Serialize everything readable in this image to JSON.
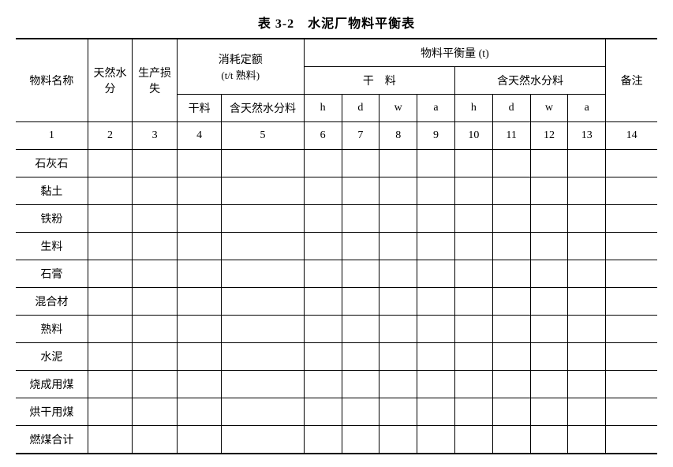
{
  "title": "表 3-2　水泥厂物料平衡表",
  "header": {
    "col_name": "物料名称",
    "col_moisture": "天然水分",
    "col_loss": "生产损失",
    "group_consumption": "消耗定额",
    "group_consumption_sub": "(t/t 熟料)",
    "consumption_dry": "干料",
    "consumption_wet": "含天然水分料",
    "group_balance": "物料平衡量 (t)",
    "balance_dry": "干　料",
    "balance_wet": "含天然水分料",
    "col_remark": "备注",
    "h": "h",
    "d": "d",
    "w": "w",
    "a": "a"
  },
  "index_row": [
    "1",
    "2",
    "3",
    "4",
    "5",
    "6",
    "7",
    "8",
    "9",
    "10",
    "11",
    "12",
    "13",
    "14"
  ],
  "rows": [
    {
      "name": "石灰石"
    },
    {
      "name": "黏土"
    },
    {
      "name": "铁粉"
    },
    {
      "name": "生料"
    },
    {
      "name": "石膏"
    },
    {
      "name": "混合材"
    },
    {
      "name": "熟料"
    },
    {
      "name": "水泥"
    },
    {
      "name": "烧成用煤"
    },
    {
      "name": "烘干用煤"
    },
    {
      "name": "燃煤合计"
    }
  ],
  "columns": 14,
  "layout": {
    "col_widths_pct": [
      10.5,
      6.5,
      6.5,
      6.5,
      12,
      5.5,
      5.5,
      5.5,
      5.5,
      5.5,
      5.5,
      5.5,
      5.5,
      7.5
    ]
  }
}
